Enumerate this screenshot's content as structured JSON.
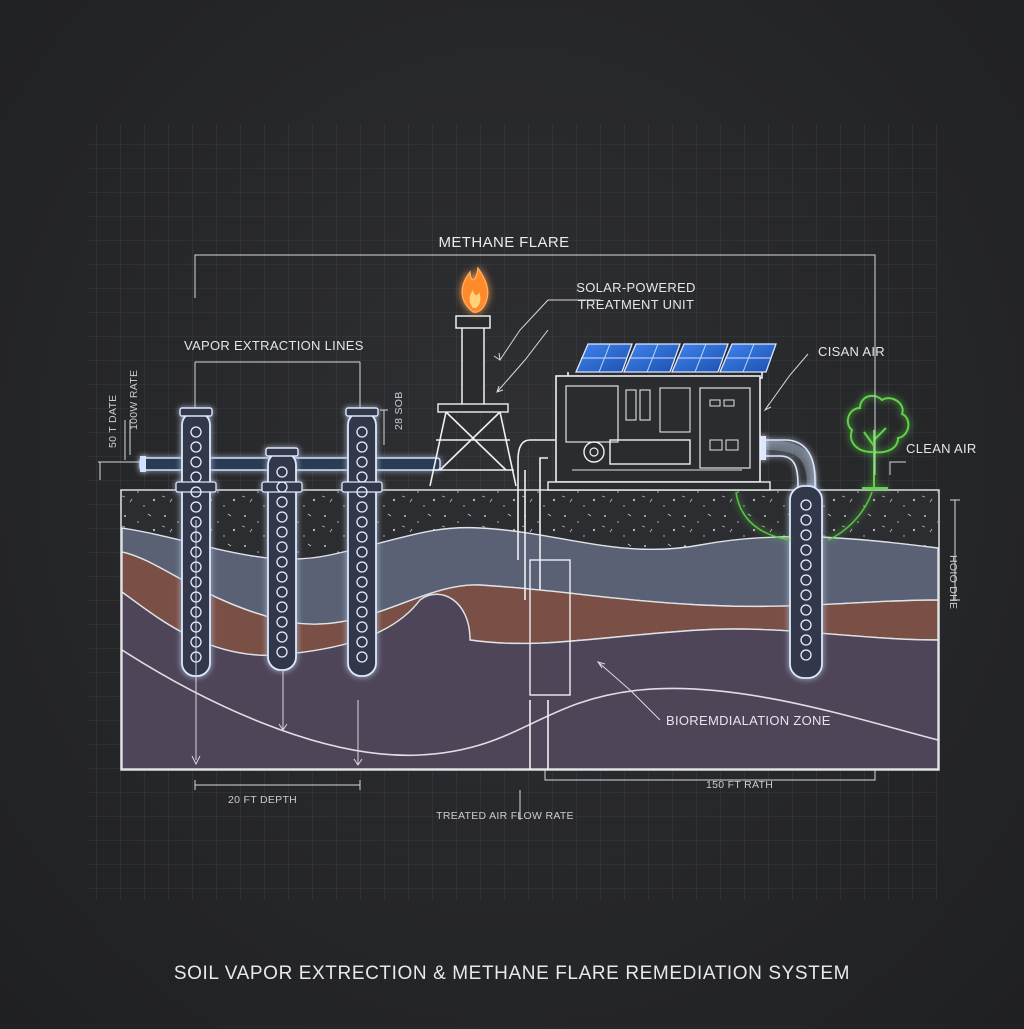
{
  "labels": {
    "methane_flare": "METHANE FLARE",
    "solar_line1": "SOLAR-POWERED",
    "solar_line2": "TREATMENT UNIT",
    "vapor_lines": "VAPOR EXTRACTION LINES",
    "cisan_air": "CISAN AIR",
    "clean_air": "CLEAN AIR",
    "bioremediation": "BIOREMDIALATION ZONE",
    "depth": "20 FT DEPTH",
    "path": "150 FT RATH",
    "treated_flow": "TREATED AIR FLOW RATE",
    "left_dim_1": "50 T DATE",
    "left_dim_2": "100W RATE",
    "mid_dim": "28 SOB",
    "right_dim": "HOIO DHE"
  },
  "caption": "SOIL VAPOR EXTRECTION & METHANE FLARE REMEDIATION SYSTEM",
  "colors": {
    "background": "#262729",
    "wire": "#eef0f3",
    "glow": "#7fb4ff",
    "flame": "#ff8a2a",
    "clean_air": "#5fd34a",
    "layer_gray": "#5a6175",
    "layer_brown": "#7a4f45",
    "layer_purple": "#4e4559",
    "solar_panel": "#2f6fd6"
  }
}
